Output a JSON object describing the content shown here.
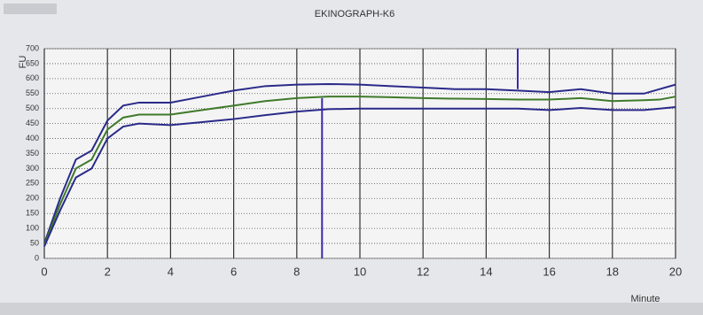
{
  "chart_data": {
    "type": "line",
    "title": "EKINOGRAPH-K6",
    "ylabel": "FU",
    "xlabel": "Minute",
    "xlim": [
      0,
      20
    ],
    "xticks": [
      0,
      2,
      4,
      6,
      8,
      10,
      12,
      14,
      16,
      18,
      20
    ],
    "ylim": [
      0,
      700
    ],
    "yticks": [
      0,
      50,
      100,
      150,
      200,
      250,
      300,
      350,
      400,
      450,
      500,
      550,
      600,
      650,
      700
    ],
    "grid": true,
    "series": [
      {
        "color": "#2a2a8a",
        "x": [
          0,
          0.5,
          1,
          1.5,
          2,
          2.5,
          3,
          4,
          5,
          6,
          7,
          8,
          9,
          10,
          11,
          12,
          13,
          14,
          15,
          16,
          17,
          18,
          19,
          19.5,
          20
        ],
        "values": [
          50,
          200,
          330,
          360,
          460,
          510,
          520,
          520,
          540,
          560,
          575,
          580,
          582,
          580,
          575,
          570,
          565,
          565,
          560,
          555,
          565,
          550,
          550,
          565,
          580
        ]
      },
      {
        "color": "#3f7a2a",
        "x": [
          0,
          0.5,
          1,
          1.5,
          2,
          2.5,
          3,
          4,
          5,
          6,
          7,
          8,
          9,
          10,
          11,
          12,
          13,
          14,
          15,
          16,
          17,
          18,
          19,
          19.5,
          20
        ],
        "values": [
          45,
          180,
          300,
          330,
          430,
          470,
          480,
          480,
          495,
          510,
          525,
          535,
          540,
          540,
          538,
          535,
          533,
          532,
          530,
          530,
          535,
          525,
          528,
          530,
          540
        ]
      },
      {
        "color": "#2a2a8a",
        "x": [
          0,
          0.5,
          1,
          1.5,
          2,
          2.5,
          3,
          4,
          5,
          6,
          7,
          8,
          9,
          10,
          11,
          12,
          13,
          14,
          15,
          16,
          17,
          18,
          19,
          19.5,
          20
        ],
        "values": [
          40,
          160,
          270,
          300,
          400,
          440,
          450,
          445,
          455,
          465,
          478,
          490,
          498,
          500,
          500,
          500,
          500,
          500,
          500,
          495,
          502,
          495,
          495,
          500,
          505
        ]
      },
      {
        "color": "#3a2ab0",
        "x": [
          8.8,
          8.8
        ],
        "values": [
          0,
          535
        ]
      },
      {
        "color": "#3a2ab0",
        "x": [
          15,
          15
        ],
        "values": [
          565,
          700
        ]
      }
    ]
  }
}
